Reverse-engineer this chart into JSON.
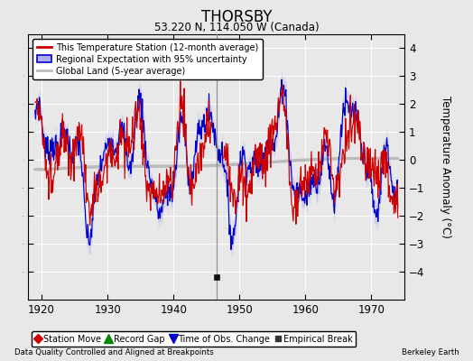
{
  "title": "THORSBY",
  "subtitle": "53.220 N, 114.050 W (Canada)",
  "ylabel": "Temperature Anomaly (°C)",
  "xlabel_left": "Data Quality Controlled and Aligned at Breakpoints",
  "xlabel_right": "Berkeley Earth",
  "xlim": [
    1918,
    1975
  ],
  "ylim": [
    -5,
    4.5
  ],
  "yticks": [
    -4,
    -3,
    -2,
    -1,
    0,
    1,
    2,
    3,
    4
  ],
  "xticks": [
    1920,
    1930,
    1940,
    1950,
    1960,
    1970
  ],
  "bg_color": "#e8e8e8",
  "plot_bg_color": "#e8e8e8",
  "empirical_break_x": 1946.5,
  "empirical_break_y": -4.2,
  "grid_color": "#ffffff",
  "red_line_color": "#cc0000",
  "blue_line_color": "#0000cc",
  "blue_fill_color": "#b0b0ee",
  "gray_line_color": "#bbbbbb",
  "legend1_label": "This Temperature Station (12-month average)",
  "legend2_label": "Regional Expectation with 95% uncertainty",
  "legend3_label": "Global Land (5-year average)",
  "bottom_legend": [
    {
      "marker": "D",
      "color": "#cc0000",
      "label": "Station Move"
    },
    {
      "marker": "^",
      "color": "#008800",
      "label": "Record Gap"
    },
    {
      "marker": "v",
      "color": "#0000cc",
      "label": "Time of Obs. Change"
    },
    {
      "marker": "s",
      "color": "#333333",
      "label": "Empirical Break"
    }
  ]
}
